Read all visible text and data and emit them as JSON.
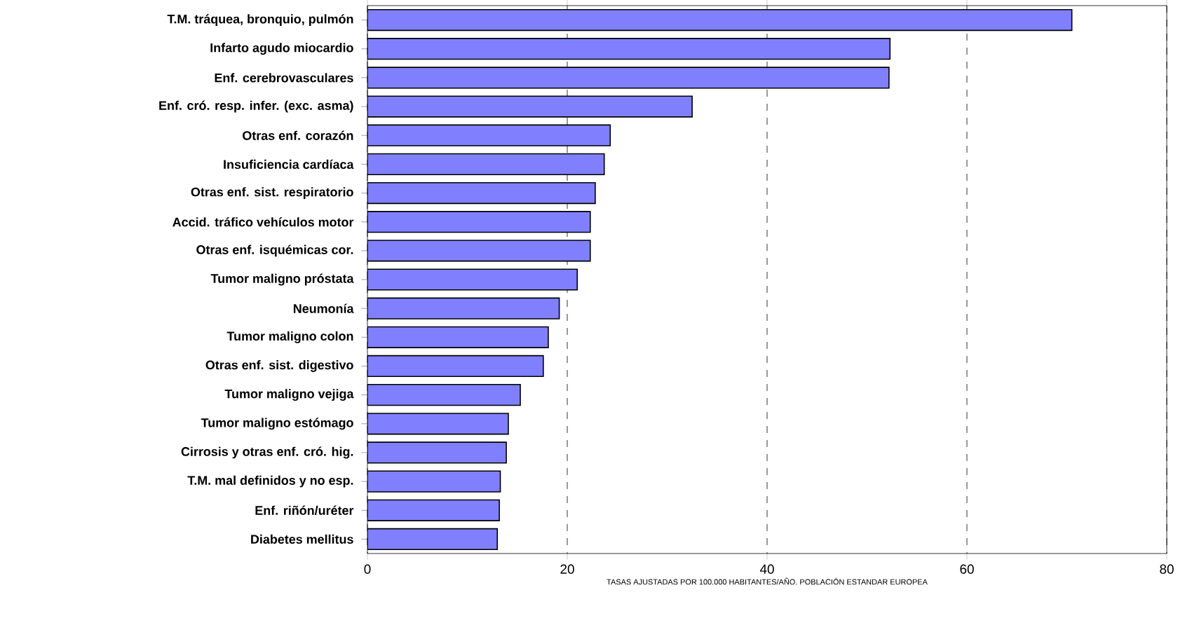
{
  "chart_data": {
    "type": "bar",
    "orientation": "horizontal",
    "xlabel": "TASAS AJUSTADAS  POR 100.000 HABITANTES/AÑO. POBLACIÓN ESTANDAR EUROPEA",
    "categories": [
      "T.M. tráquea, bronquio,  pulmón",
      "Infarto agudo miocardio",
      "Enf. cerebrovasculares",
      "Enf. cró. resp. infer. (exc. asma)",
      "Otras enf. corazón",
      "Insuficiencia cardíaca",
      "Otras enf. sist. respiratorio",
      "Accid. tráfico vehículos motor",
      "Otras enf. isquémicas cor.",
      "Tumor maligno próstata",
      "Neumonía",
      "Tumor maligno colon",
      "Otras enf. sist. digestivo",
      "Tumor maligno vejiga",
      "Tumor maligno estómago",
      "Cirrosis y otras enf. cró. hig.",
      "T.M. mal definidos y no esp.",
      "Enf. riñón/uréter",
      "Diabetes mellitus"
    ],
    "values": [
      70.5,
      52.3,
      52.2,
      32.5,
      24.3,
      23.7,
      22.8,
      22.3,
      22.3,
      21.0,
      19.2,
      18.1,
      17.6,
      15.3,
      14.1,
      13.9,
      13.3,
      13.2,
      13.0
    ],
    "color": "#8080ff",
    "xlim": [
      0,
      80
    ],
    "xticks": [
      0,
      20,
      40,
      60,
      80
    ],
    "grid": "x"
  }
}
